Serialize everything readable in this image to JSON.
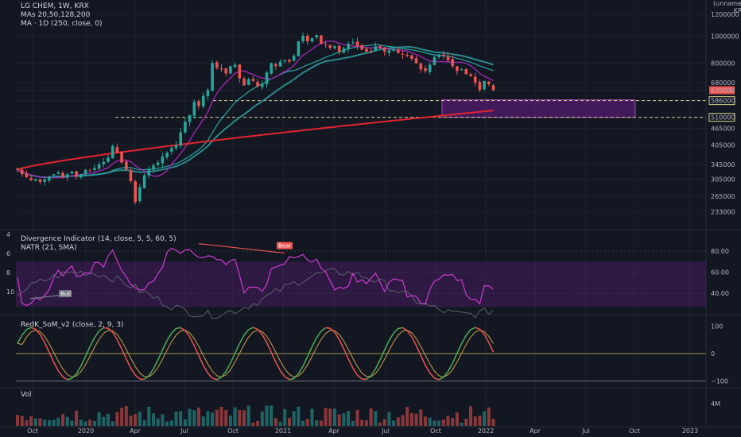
{
  "legend": {
    "main": [
      "LG CHEM, 1W, KRX",
      "MAs 20,50,128,200",
      "MA · 1D (250, close, 0)"
    ],
    "div": [
      "Divergence Indicator (14, close, 5, 5, 60, 5)",
      "NATR (21, SMA)"
    ],
    "som": "RedK_SoM_v2 (close, 2, 9, 3)",
    "vol": "Vol"
  },
  "currency": {
    "unit": "(unnamed)",
    "code": "KRW"
  },
  "colors": {
    "bg": "#131722",
    "up": "#26a69a",
    "down": "#ef5350",
    "ma_purple": "#9c27b0",
    "ma_teal": "#26a6a6",
    "ma_red": "#e0242e",
    "box": "#7b1fa2",
    "som_green": "#4caf50"
  },
  "chart_data": [
    {
      "type": "candlestick",
      "title": "LG CHEM, 1W, KRX",
      "x_ticks": [
        "Oct",
        "2020",
        "Apr",
        "Jul",
        "Oct",
        "2021",
        "Apr",
        "Jul",
        "Oct",
        "2022",
        "Apr",
        "Jul",
        "Oct",
        "2023"
      ],
      "y_ticks": [
        233000,
        265000,
        305000,
        345000,
        405000,
        465000,
        510000,
        586000,
        639000,
        680000,
        800000,
        1000000,
        1200000
      ],
      "price_labels": [
        {
          "value": 639000,
          "text": "639000",
          "color": "#ef5350"
        },
        {
          "value": 586000,
          "text": "586000"
        },
        {
          "value": 510000,
          "text": "510000"
        }
      ],
      "ylim": [
        210000,
        1300000
      ],
      "log_scale": true,
      "levels": [
        586000,
        510000
      ],
      "zone": {
        "from": "2021-10",
        "to": "2022-10",
        "low": 510000,
        "high": 590000
      },
      "closes": [
        330000,
        318000,
        310000,
        302000,
        305000,
        298000,
        304000,
        312000,
        318000,
        322000,
        310000,
        318000,
        325000,
        312000,
        318000,
        330000,
        328000,
        335000,
        345000,
        352000,
        365000,
        402000,
        380000,
        350000,
        330000,
        300000,
        252000,
        285000,
        315000,
        330000,
        342000,
        350000,
        368000,
        380000,
        395000,
        405000,
        450000,
        492000,
        520000,
        580000,
        560000,
        610000,
        640000,
        800000,
        770000,
        760000,
        735000,
        780000,
        790000,
        705000,
        665000,
        700000,
        690000,
        660000,
        672000,
        740000,
        800000,
        780000,
        810000,
        820000,
        810000,
        850000,
        960000,
        1005000,
        960000,
        985000,
        1010000,
        940000,
        935000,
        910000,
        920000,
        880000,
        905000,
        940000,
        950000,
        920000,
        895000,
        880000,
        885000,
        920000,
        910000,
        880000,
        890000,
        900000,
        870000,
        860000,
        850000,
        830000,
        800000,
        760000,
        750000,
        790000,
        840000,
        860000,
        850000,
        820000,
        780000,
        750000,
        760000,
        730000,
        720000,
        680000,
        640000,
        690000,
        672000,
        639000
      ],
      "ma_values_sample": {
        "ma50_end": 720000,
        "ma128_end": 840000,
        "ma250_1d_end": 540000
      }
    },
    {
      "type": "line",
      "title": "Divergence Indicator (14, close, 5, 5, 60, 5)",
      "y_ticks": [
        40,
        60,
        80
      ],
      "left_ticks": [
        4,
        6,
        8,
        10
      ],
      "band": [
        27,
        70
      ],
      "labels": [
        {
          "text": "Bear",
          "color": "#ef5350"
        },
        {
          "text": "Bull",
          "color": "#787b86"
        }
      ]
    },
    {
      "type": "line",
      "title": "RedK_SoM_v2 (close, 2, 9, 3)",
      "y_ticks": [
        100,
        0,
        -100
      ]
    },
    {
      "type": "bar",
      "title": "Vol",
      "y_ticks": [
        "4M"
      ]
    }
  ]
}
